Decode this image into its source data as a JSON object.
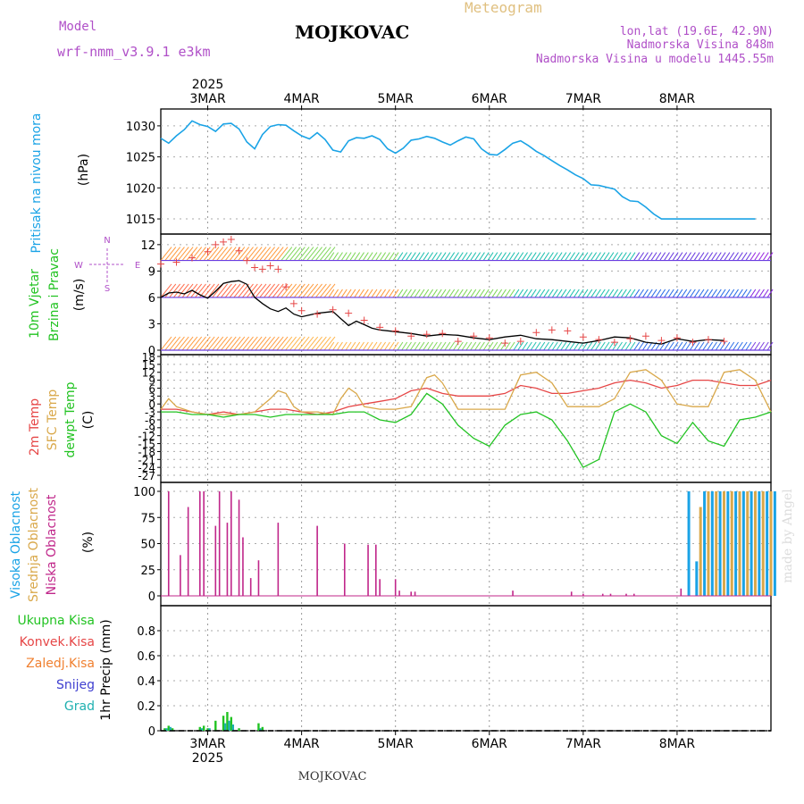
{
  "header": {
    "model_label": "Model",
    "model_value": "wrf-nmm_v3.9.1  e3km",
    "station": "MOJKOVAC",
    "product": "Meteogram",
    "coords": "lon,lat (19.6E, 42.9N)",
    "altitude": "Nadmorska Visina 848m",
    "model_altitude": "Nadmorska Visina u modelu 1445.55m"
  },
  "footer": {
    "station": "MOJKOVAC",
    "watermark": "made by Angel"
  },
  "colors": {
    "pressure": "#1aa3e6",
    "temp2m": "#e64646",
    "sfc_temp": "#d9a84a",
    "dewpt": "#22c322",
    "low_cloud": "#c0268a",
    "high_cloud": "#1aa3e6",
    "mid_cloud": "#d9a84a",
    "precip_total": "#22c322",
    "precip_conv": "#e64646",
    "precip_frz": "#f08030",
    "precip_snow": "#4040d0",
    "precip_hail": "#20b0b0",
    "header_purple": "#b050c8",
    "header_gold": "#e0c080"
  },
  "chart_data": [
    {
      "type": "line",
      "title": "Pritisak na nivou mora",
      "ylabel": "(hPa)",
      "ylim": [
        1014,
        1032
      ],
      "yticks": [
        1015,
        1020,
        1025,
        1030
      ],
      "x_unit": "hours since 2025-03-03 00:00 UTC",
      "xlim": [
        -12,
        144
      ],
      "x_ticks": [
        0,
        24,
        48,
        72,
        96,
        120
      ],
      "x_tick_labels": [
        "3MAR",
        "4MAR",
        "5MAR",
        "6MAR",
        "7MAR",
        "8MAR"
      ],
      "year_label": "2025",
      "series": [
        {
          "name": "MSLP",
          "x": [
            -12,
            -10,
            -8,
            -6,
            -4,
            -2,
            0,
            2,
            4,
            6,
            8,
            10,
            12,
            14,
            16,
            18,
            20,
            22,
            24,
            26,
            28,
            30,
            32,
            34,
            36,
            38,
            40,
            42,
            44,
            46,
            48,
            50,
            52,
            54,
            56,
            58,
            60,
            62,
            64,
            66,
            68,
            70,
            72,
            74,
            76,
            78,
            80,
            82,
            84,
            86,
            88,
            90,
            92,
            94,
            96,
            98,
            100,
            102,
            104,
            106,
            108,
            110,
            112,
            114,
            116,
            118,
            120,
            122,
            124,
            126,
            128,
            130,
            132,
            134,
            136,
            138,
            140,
            142,
            144
          ],
          "values": [
            1028.0,
            1027.2,
            1028.4,
            1029.4,
            1030.8,
            1030.2,
            1029.9,
            1029.1,
            1030.3,
            1030.4,
            1029.5,
            1027.4,
            1026.3,
            1028.6,
            1029.9,
            1030.2,
            1030.1,
            1029.2,
            1028.4,
            1027.9,
            1028.9,
            1027.8,
            1026.1,
            1025.8,
            1027.6,
            1028.1,
            1028.0,
            1028.4,
            1027.8,
            1026.3,
            1025.6,
            1026.4,
            1027.7,
            1027.9,
            1028.3,
            1028.0,
            1027.4,
            1026.9,
            1027.6,
            1028.2,
            1027.9,
            1026.3,
            1025.4,
            1025.3,
            1026.2,
            1027.2,
            1027.6,
            1026.8,
            1025.9,
            1025.2,
            1024.4,
            1023.6,
            1022.9,
            1022.1,
            1021.5,
            1020.5,
            1020.4,
            1020.1,
            1019.8,
            1018.6,
            1017.9,
            1017.8,
            1016.9,
            1015.8,
            1015.0,
            1015.0,
            1015.0,
            1015.0,
            1015.0,
            1015.0,
            1015.0,
            1015.0,
            1015.0,
            1015.0,
            1015.0,
            1015.0,
            1015.0,
            1015.0,
            1015.0
          ]
        }
      ]
    },
    {
      "type": "line",
      "title": "10m Vjetar Brzina i Pravac",
      "ylabel": "(m/s)",
      "ylim": [
        0,
        13
      ],
      "yticks": [
        0,
        3,
        6,
        9,
        12
      ],
      "compass": {
        "north": "N",
        "east": "E",
        "south": "S",
        "west": "W"
      },
      "series": [
        {
          "name": "gust (+)",
          "x": [
            -12,
            -8,
            -4,
            0,
            2,
            4,
            6,
            8,
            10,
            12,
            14,
            16,
            18,
            20,
            22,
            24,
            28,
            32,
            36,
            40,
            44,
            48,
            52,
            56,
            60,
            64,
            68,
            72,
            76,
            80,
            84,
            88,
            92,
            96,
            100,
            104,
            108,
            112,
            116,
            120,
            124,
            128,
            132
          ],
          "values": [
            9.8,
            10.0,
            10.5,
            11.2,
            12.0,
            12.3,
            12.6,
            11.3,
            10.2,
            9.4,
            9.2,
            9.6,
            9.2,
            7.2,
            5.3,
            4.5,
            4.1,
            4.6,
            4.2,
            3.4,
            2.6,
            2.2,
            1.6,
            1.8,
            1.9,
            1.0,
            1.6,
            1.4,
            0.8,
            1.0,
            2.0,
            2.3,
            2.2,
            1.5,
            1.2,
            0.9,
            1.3,
            1.6,
            1.1,
            1.4,
            0.9,
            1.2,
            1.0
          ]
        },
        {
          "name": "speed",
          "x": [
            -12,
            -10,
            -8,
            -6,
            -4,
            -2,
            0,
            2,
            4,
            6,
            8,
            10,
            12,
            14,
            16,
            18,
            20,
            22,
            24,
            26,
            28,
            30,
            32,
            34,
            36,
            38,
            40,
            42,
            44,
            46,
            48,
            52,
            56,
            60,
            64,
            68,
            72,
            76,
            80,
            84,
            88,
            92,
            96,
            100,
            104,
            108,
            112,
            116,
            120,
            124,
            128,
            132
          ],
          "values": [
            6.0,
            6.5,
            6.6,
            6.4,
            6.8,
            6.3,
            5.9,
            6.7,
            7.6,
            7.8,
            7.9,
            7.5,
            6.0,
            5.3,
            4.7,
            4.4,
            4.8,
            4.1,
            3.8,
            4.0,
            4.2,
            4.3,
            4.4,
            3.6,
            2.8,
            3.3,
            2.9,
            2.5,
            2.3,
            2.2,
            2.1,
            1.9,
            1.6,
            1.8,
            1.7,
            1.4,
            1.2,
            1.5,
            1.7,
            1.3,
            1.2,
            1.0,
            0.8,
            1.1,
            1.5,
            1.4,
            0.9,
            0.7,
            1.3,
            1.0,
            1.2,
            1.1
          ]
        }
      ]
    },
    {
      "type": "line",
      "title": "2m Temp / SFC Temp / dewpt Temp",
      "ylabel": "(C)",
      "ylim": [
        -28,
        18
      ],
      "yticks": [
        18,
        15,
        12,
        9,
        6,
        3,
        0,
        -3,
        -6,
        -9,
        -12,
        -15,
        -18,
        -21,
        -24,
        -27
      ],
      "series": [
        {
          "name": "2m Temp",
          "x": [
            -12,
            -8,
            -4,
            0,
            4,
            8,
            12,
            16,
            20,
            24,
            28,
            32,
            36,
            40,
            44,
            48,
            52,
            56,
            60,
            64,
            68,
            72,
            76,
            80,
            84,
            88,
            92,
            96,
            100,
            104,
            108,
            112,
            116,
            120,
            124,
            128,
            132,
            136,
            140,
            144
          ],
          "values": [
            -2,
            -2,
            -3,
            -4,
            -3,
            -4,
            -3,
            -2,
            -2,
            -3,
            -4,
            -3,
            -1,
            0,
            1,
            2,
            5,
            6,
            4,
            3,
            3,
            3,
            4,
            7,
            6,
            4,
            4,
            5,
            6,
            8,
            9,
            8,
            6,
            7,
            9,
            9,
            8,
            7,
            7,
            9
          ]
        },
        {
          "name": "SFC Temp",
          "x": [
            -12,
            -10,
            -8,
            -4,
            0,
            4,
            8,
            12,
            16,
            18,
            20,
            22,
            24,
            28,
            32,
            34,
            36,
            38,
            40,
            44,
            48,
            52,
            56,
            58,
            60,
            64,
            68,
            72,
            76,
            80,
            84,
            88,
            92,
            96,
            100,
            104,
            108,
            112,
            116,
            120,
            124,
            128,
            132,
            136,
            140,
            144
          ],
          "values": [
            -2,
            2,
            -1,
            -3,
            -4,
            -4,
            -4,
            -3,
            2,
            5,
            4,
            -1,
            -3,
            -3,
            -4,
            2,
            6,
            4,
            -1,
            -2,
            -2,
            -1,
            10,
            11,
            8,
            -2,
            -2,
            -2,
            -2,
            11,
            12,
            8,
            -1,
            -1,
            -1,
            2,
            12,
            13,
            9,
            0,
            -1,
            -1,
            12,
            13,
            9,
            -3
          ]
        },
        {
          "name": "dewpt Temp",
          "x": [
            -12,
            -8,
            -4,
            0,
            4,
            8,
            12,
            16,
            20,
            24,
            28,
            32,
            36,
            40,
            44,
            48,
            52,
            56,
            60,
            64,
            68,
            72,
            76,
            80,
            84,
            88,
            92,
            96,
            100,
            104,
            108,
            112,
            116,
            120,
            124,
            128,
            132,
            136,
            140,
            144
          ],
          "values": [
            -3,
            -3,
            -4,
            -4,
            -5,
            -4,
            -4,
            -5,
            -4,
            -4,
            -4,
            -4,
            -3,
            -3,
            -6,
            -7,
            -4,
            4,
            0,
            -8,
            -13,
            -16,
            -8,
            -4,
            -3,
            -6,
            -14,
            -24,
            -21,
            -3,
            0,
            -3,
            -12,
            -15,
            -7,
            -14,
            -16,
            -6,
            -5,
            -3
          ]
        }
      ]
    },
    {
      "type": "bar",
      "title": "Visoka / Srednja / Niska Oblacnost",
      "ylabel": "(%)",
      "ylim": [
        0,
        100
      ],
      "yticks": [
        0,
        25,
        50,
        75,
        100
      ],
      "series": [
        {
          "name": "Niska Oblacnost",
          "x": [
            -10,
            -7,
            -5,
            -2,
            -1,
            2,
            3,
            5,
            6,
            8,
            9,
            11,
            13,
            18,
            28,
            35,
            41,
            43,
            44,
            48,
            49,
            52,
            53,
            78,
            93,
            96,
            101,
            103,
            107,
            109,
            121
          ],
          "values": [
            100,
            39,
            85,
            100,
            100,
            67,
            100,
            70,
            100,
            92,
            56,
            17,
            34,
            70,
            67,
            50,
            49,
            49,
            16,
            16,
            5,
            4,
            4,
            5,
            4,
            2,
            2,
            2,
            2,
            2,
            7
          ]
        },
        {
          "name": "Visoka Oblacnost",
          "x": [
            123,
            125,
            127,
            129,
            131,
            133,
            135,
            137,
            139,
            141,
            143,
            145
          ],
          "values": [
            100,
            33,
            100,
            100,
            100,
            100,
            100,
            100,
            100,
            100,
            100,
            100
          ]
        },
        {
          "name": "Srednja Oblacnost",
          "x": [
            126,
            128,
            130,
            132,
            134,
            136,
            138,
            140,
            142,
            144
          ],
          "values": [
            85,
            100,
            100,
            100,
            100,
            100,
            100,
            100,
            100,
            100
          ]
        }
      ]
    },
    {
      "type": "bar",
      "title": "1hr Precip",
      "ylabel": "1hr Precip (mm)",
      "ylim": [
        0,
        0.95
      ],
      "yticks": [
        0,
        0.2,
        0.4,
        0.6,
        0.8
      ],
      "series": [
        {
          "name": "Ukupna Kisa",
          "x": [
            -11,
            -10,
            -9,
            -2,
            -1,
            0,
            2,
            4,
            5,
            6,
            8,
            13,
            14
          ],
          "values": [
            0.02,
            0.04,
            0.02,
            0.03,
            0.04,
            0.02,
            0.08,
            0.12,
            0.15,
            0.11,
            0.02,
            0.06,
            0.03
          ]
        },
        {
          "name": "Grad",
          "x": [
            -11,
            -10,
            -2,
            0,
            4,
            5,
            6,
            13
          ],
          "values": [
            0.02,
            0.03,
            0.02,
            0.02,
            0.06,
            0.08,
            0.05,
            0.02
          ]
        }
      ]
    }
  ],
  "panel_labels": {
    "pressure": "Pritisak na nivou mora",
    "pressure_unit": "(hPa)",
    "wind_a": "10m Vjetar",
    "wind_b": "Brzina i Pravac",
    "wind_unit": "(m/s)",
    "temp_a": "2m Temp",
    "temp_b": "SFC Temp",
    "temp_c": "dewpt Temp",
    "temp_unit": "(C)",
    "cloud_a": "Visoka Oblacnost",
    "cloud_b": "Srednja Oblacnost",
    "cloud_c": "Niska Oblacnost",
    "cloud_unit": "(%)",
    "precip_unit": "1hr Precip (mm)",
    "precip_legend": [
      "Ukupna Kisa",
      "Konvek.Kisa",
      "Zaledj.Kisa",
      "Snijeg",
      "Grad"
    ]
  }
}
